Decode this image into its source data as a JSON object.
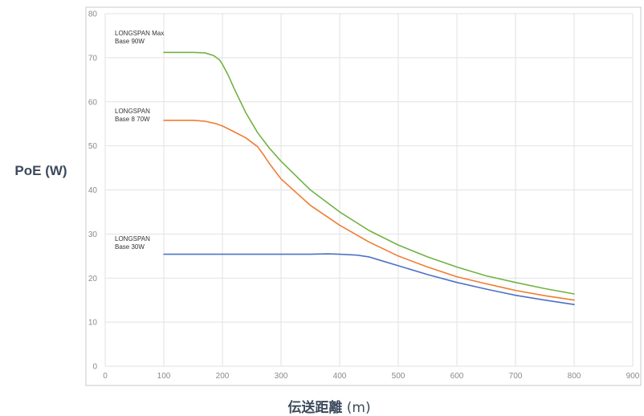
{
  "chart_data": {
    "type": "line",
    "ylabel": "PoE (W)",
    "xlabel_main": "伝送距離",
    "xlabel_unit": "(m)",
    "xlim": [
      0,
      900
    ],
    "ylim": [
      0,
      80
    ],
    "xticks": [
      0,
      100,
      200,
      300,
      400,
      500,
      600,
      700,
      800,
      900
    ],
    "yticks": [
      0,
      10,
      20,
      30,
      40,
      50,
      60,
      70,
      80
    ],
    "grid": true,
    "series": [
      {
        "name_lines": [
          "LONGSPAN Max",
          "Base 90W"
        ],
        "color": "#72b244",
        "x": [
          100,
          150,
          170,
          185,
          195,
          200,
          210,
          220,
          240,
          260,
          280,
          300,
          350,
          400,
          450,
          500,
          550,
          600,
          650,
          700,
          750,
          800
        ],
        "y": [
          71.2,
          71.2,
          71.1,
          70.5,
          69.5,
          68.5,
          66,
          63,
          57.5,
          53,
          49.5,
          46.5,
          40,
          35,
          30.8,
          27.5,
          24.8,
          22.5,
          20.5,
          19,
          17.6,
          16.4
        ]
      },
      {
        "name_lines": [
          "LONGSPAN",
          "Base 8 70W"
        ],
        "color": "#ef7d32",
        "x": [
          100,
          150,
          170,
          190,
          200,
          220,
          240,
          260,
          270,
          280,
          300,
          350,
          400,
          450,
          500,
          550,
          600,
          650,
          700,
          750,
          800
        ],
        "y": [
          55.8,
          55.8,
          55.6,
          55,
          54.5,
          53.2,
          51.8,
          49.8,
          48,
          46,
          42.5,
          36.5,
          32,
          28.2,
          25,
          22.5,
          20.3,
          18.7,
          17.2,
          16,
          15
        ]
      },
      {
        "name_lines": [
          "LONGSPAN",
          "Base 30W"
        ],
        "color": "#4c72c5",
        "x": [
          100,
          200,
          300,
          350,
          380,
          400,
          430,
          450,
          470,
          500,
          550,
          600,
          650,
          700,
          750,
          800
        ],
        "y": [
          25.4,
          25.4,
          25.4,
          25.4,
          25.5,
          25.4,
          25.2,
          24.8,
          24,
          22.8,
          20.8,
          19,
          17.5,
          16.1,
          15,
          14
        ]
      }
    ],
    "annotation_lines": [
      [
        "LONGSPAN Max",
        "Base 90W"
      ],
      [
        "LONGSPAN",
        "Base 8 70W"
      ],
      [
        "LONGSPAN",
        "Base 30W"
      ]
    ]
  }
}
